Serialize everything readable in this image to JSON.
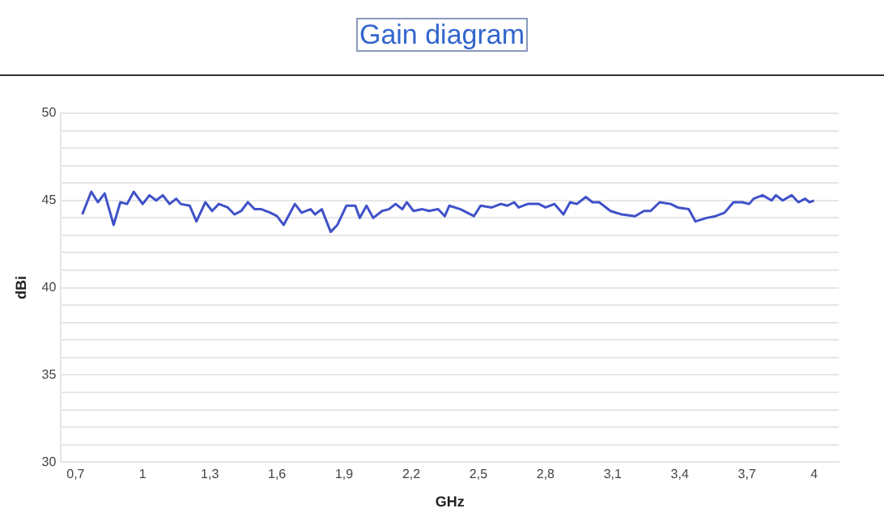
{
  "chart_data": {
    "type": "line",
    "title": "Gain diagram",
    "xlabel": "GHz",
    "ylabel": "dBi",
    "x": [
      0.73,
      0.77,
      0.8,
      0.83,
      0.87,
      0.9,
      0.93,
      0.96,
      1.0,
      1.03,
      1.06,
      1.09,
      1.12,
      1.15,
      1.17,
      1.21,
      1.24,
      1.28,
      1.31,
      1.34,
      1.38,
      1.41,
      1.44,
      1.47,
      1.5,
      1.53,
      1.57,
      1.6,
      1.63,
      1.68,
      1.71,
      1.75,
      1.77,
      1.8,
      1.84,
      1.87,
      1.91,
      1.95,
      1.97,
      2.0,
      2.03,
      2.07,
      2.1,
      2.13,
      2.16,
      2.18,
      2.21,
      2.25,
      2.28,
      2.32,
      2.35,
      2.37,
      2.42,
      2.48,
      2.51,
      2.56,
      2.6,
      2.63,
      2.66,
      2.68,
      2.72,
      2.77,
      2.8,
      2.84,
      2.88,
      2.91,
      2.94,
      2.98,
      3.01,
      3.04,
      3.09,
      3.14,
      3.2,
      3.24,
      3.27,
      3.31,
      3.36,
      3.39,
      3.44,
      3.47,
      3.52,
      3.56,
      3.6,
      3.64,
      3.68,
      3.71,
      3.73,
      3.77,
      3.81,
      3.83,
      3.86,
      3.9,
      3.93,
      3.96,
      3.98,
      4.0
    ],
    "series": [
      {
        "color": "#3f51c8",
        "values": [
          44.2,
          45.5,
          44.9,
          45.4,
          43.6,
          44.9,
          44.8,
          45.5,
          44.8,
          45.3,
          45.0,
          45.3,
          44.8,
          45.1,
          44.8,
          44.7,
          43.8,
          44.9,
          44.4,
          44.8,
          44.6,
          44.2,
          44.4,
          44.9,
          44.5,
          44.5,
          44.3,
          44.1,
          43.6,
          44.8,
          44.3,
          44.5,
          44.2,
          44.5,
          43.2,
          43.6,
          44.7,
          44.7,
          44.0,
          44.7,
          44.0,
          44.4,
          44.5,
          44.8,
          44.5,
          44.9,
          44.4,
          44.5,
          44.4,
          44.5,
          44.1,
          44.7,
          44.5,
          44.1,
          44.7,
          44.6,
          44.8,
          44.7,
          44.9,
          44.6,
          44.8,
          44.8,
          44.6,
          44.8,
          44.2,
          44.9,
          44.8,
          45.2,
          44.9,
          44.9,
          44.4,
          44.2,
          44.1,
          44.4,
          44.4,
          44.9,
          44.8,
          44.6,
          44.5,
          43.8,
          44.0,
          44.1,
          44.3,
          44.9,
          44.9,
          44.8,
          45.1,
          45.3,
          45.0,
          45.3,
          45.0,
          45.3,
          44.9,
          45.1,
          44.9,
          45.0
        ]
      }
    ],
    "xlim": [
      0.635,
      4.11
    ],
    "xticks": [
      {
        "value": 0.7,
        "label": "0,7"
      },
      1,
      {
        "value": 1.3,
        "label": "1,3"
      },
      {
        "value": 1.6,
        "label": "1,6"
      },
      {
        "value": 1.9,
        "label": "1,9"
      },
      {
        "value": 2.2,
        "label": "2,2"
      },
      {
        "value": 2.5,
        "label": "2,5"
      },
      {
        "value": 2.8,
        "label": "2,8"
      },
      {
        "value": 3.1,
        "label": "3,1"
      },
      {
        "value": 3.4,
        "label": "3,4"
      },
      {
        "value": 3.7,
        "label": "3,7"
      },
      4
    ],
    "ylim": [
      30,
      50
    ],
    "yticks": [
      30,
      {
        "value": 31,
        "label": null
      },
      {
        "value": 32,
        "label": null
      },
      {
        "value": 33,
        "label": null
      },
      {
        "value": 34,
        "label": null
      },
      35,
      {
        "value": 36,
        "label": null
      },
      {
        "value": 37,
        "label": null
      },
      {
        "value": 38,
        "label": null
      },
      {
        "value": 39,
        "label": null
      },
      40,
      {
        "value": 41,
        "label": null
      },
      {
        "value": 42,
        "label": null
      },
      {
        "value": 43,
        "label": null
      },
      {
        "value": 44,
        "label": null
      },
      45,
      {
        "value": 46,
        "label": null
      },
      {
        "value": 47,
        "label": null
      },
      {
        "value": 48,
        "label": null
      },
      {
        "value": 49,
        "label": null
      },
      50
    ],
    "grid": "y",
    "marker": "none",
    "line_style": "solid"
  }
}
